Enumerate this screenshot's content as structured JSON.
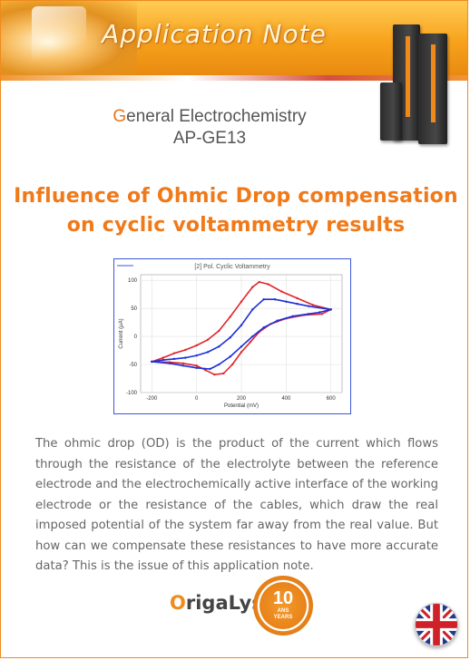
{
  "header": {
    "title": "Application Note"
  },
  "section": {
    "first_letter": "G",
    "rest": "eneral Electrochemistry",
    "code": "AP-GE13"
  },
  "title": {
    "line1": "Influence of Ohmic Drop compensation",
    "line2": "on cyclic voltammetry results"
  },
  "body": "The ohmic drop (OD) is the product of the current which flows through the resistance of the electrolyte between the reference electrode and the electrochemically active interface of the working electrode or the resistance of the cables, which draw the real imposed potential of the system far away from the real value. But how can we compensate these resistances to have more accurate data? This is the issue of this application note.",
  "footer": {
    "logo_prefix": "O",
    "logo_rest": "rigaLys",
    "badge_number": "10",
    "badge_text_1": "ANS",
    "badge_text_2": "YEARS"
  },
  "colors": {
    "accent": "#f08a1c",
    "series_red": "#e0242a",
    "series_blue": "#1c2fd8"
  },
  "chart_data": {
    "type": "line",
    "title": "[2] Pol. Cyclic Voltammetry",
    "xlabel": "Potential (mV)",
    "ylabel": "Current (µA)",
    "xlim": [
      -250,
      650
    ],
    "ylim": [
      -100,
      110
    ],
    "xticks": [
      -200,
      0,
      200,
      400,
      600
    ],
    "yticks": [
      100,
      50,
      0,
      -50,
      -100
    ],
    "series": [
      {
        "color": "#e0242a",
        "x": [
          -200,
          -150,
          -100,
          -50,
          0,
          50,
          100,
          150,
          200,
          250,
          280,
          320,
          380,
          450,
          520,
          600,
          560,
          480,
          400,
          330,
          280,
          240,
          200,
          160,
          120,
          80,
          40,
          0,
          -60,
          -120,
          -200
        ],
        "y": [
          -45,
          -38,
          -30,
          -24,
          -16,
          -6,
          10,
          35,
          62,
          88,
          97,
          93,
          80,
          68,
          56,
          48,
          40,
          38,
          32,
          22,
          8,
          -10,
          -28,
          -50,
          -66,
          -68,
          -60,
          -52,
          -48,
          -46,
          -45
        ]
      },
      {
        "color": "#1c2fd8",
        "x": [
          -200,
          -150,
          -100,
          -50,
          0,
          50,
          100,
          150,
          200,
          250,
          300,
          350,
          400,
          450,
          500,
          600,
          550,
          500,
          430,
          360,
          300,
          250,
          200,
          150,
          100,
          60,
          0,
          -60,
          -120,
          -200
        ],
        "y": [
          -45,
          -42,
          -40,
          -38,
          -34,
          -28,
          -18,
          -2,
          20,
          48,
          66,
          66,
          62,
          58,
          54,
          48,
          43,
          40,
          36,
          28,
          16,
          0,
          -18,
          -36,
          -50,
          -58,
          -56,
          -52,
          -48,
          -45
        ]
      }
    ]
  }
}
